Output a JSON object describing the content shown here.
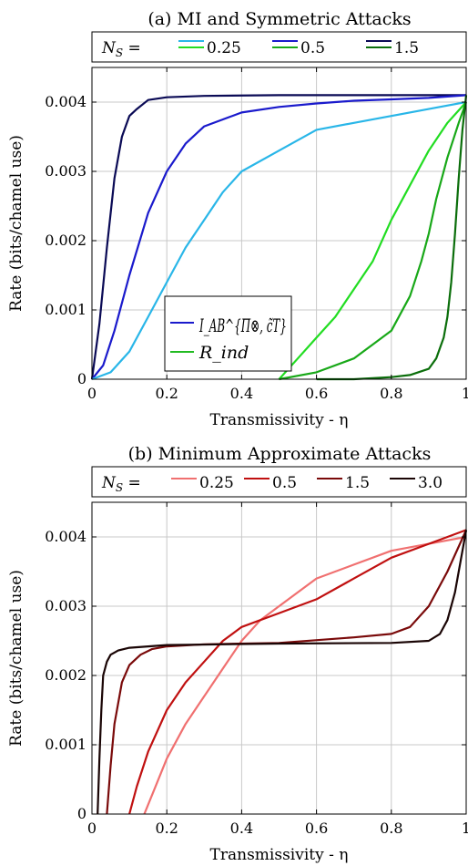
{
  "chart_data": [
    {
      "type": "line",
      "title": "(a) MI and Symmetric Attacks",
      "xlabel": "Transmissivity - η",
      "ylabel": "Rate (bits/chamel use)",
      "xlim": [
        0,
        1
      ],
      "ylim": [
        0,
        0.0045
      ],
      "xticks": [
        "0",
        "0.2",
        "0.4",
        "0.6",
        "0.8",
        "1"
      ],
      "yticks": [
        "0",
        "0.001",
        "0.002",
        "0.003",
        "0.004"
      ],
      "grid": true,
      "top_legend": {
        "prefix": "N_S =",
        "entries": [
          {
            "label": "0.25",
            "colors": [
              "#29b6e8",
              "#22dd22"
            ]
          },
          {
            "label": "0.5",
            "colors": [
              "#1a1acc",
              "#18a818"
            ]
          },
          {
            "label": "1.5",
            "colors": [
              "#0a0a55",
              "#0b6e0b"
            ]
          }
        ]
      },
      "inner_legend": {
        "placement": "center-left",
        "entries": [
          {
            "label": "I_AB^{Π⊗, c̃T}",
            "color": "#1a1acc"
          },
          {
            "label": "R_ind",
            "color": "#22bb22"
          }
        ]
      },
      "series": [
        {
          "color": "#0a0a55",
          "x": [
            0,
            0.02,
            0.04,
            0.06,
            0.08,
            0.1,
            0.12,
            0.15,
            0.2,
            0.3,
            0.5,
            0.8,
            1.0
          ],
          "y": [
            0,
            0.0008,
            0.0019,
            0.0029,
            0.0035,
            0.0038,
            0.0039,
            0.00403,
            0.00407,
            0.00409,
            0.0041,
            0.0041,
            0.0041
          ]
        },
        {
          "color": "#1a1acc",
          "x": [
            0,
            0.03,
            0.06,
            0.1,
            0.15,
            0.2,
            0.25,
            0.3,
            0.4,
            0.5,
            0.6,
            0.7,
            0.8,
            0.9,
            1.0
          ],
          "y": [
            0,
            0.0002,
            0.0007,
            0.0015,
            0.0024,
            0.003,
            0.0034,
            0.00365,
            0.00385,
            0.00393,
            0.00398,
            0.00402,
            0.00404,
            0.00406,
            0.0041
          ]
        },
        {
          "color": "#29b6e8",
          "x": [
            0,
            0.05,
            0.1,
            0.15,
            0.2,
            0.25,
            0.3,
            0.35,
            0.4,
            0.5,
            0.6,
            0.7,
            0.8,
            0.9,
            1.0
          ],
          "y": [
            0,
            0.0001,
            0.0004,
            0.0009,
            0.0014,
            0.0019,
            0.0023,
            0.0027,
            0.003,
            0.0033,
            0.0036,
            0.0037,
            0.0038,
            0.0039,
            0.004
          ]
        },
        {
          "color": "#22dd22",
          "x": [
            0.5,
            0.55,
            0.6,
            0.65,
            0.7,
            0.75,
            0.8,
            0.85,
            0.9,
            0.95,
            1.0
          ],
          "y": [
            0,
            0.0003,
            0.0006,
            0.0009,
            0.0013,
            0.0017,
            0.0023,
            0.0028,
            0.0033,
            0.0037,
            0.004
          ]
        },
        {
          "color": "#18a818",
          "x": [
            0.5,
            0.6,
            0.7,
            0.75,
            0.8,
            0.85,
            0.88,
            0.9,
            0.92,
            0.95,
            0.98,
            1.0
          ],
          "y": [
            0,
            0.0001,
            0.0003,
            0.0005,
            0.0007,
            0.0012,
            0.0017,
            0.0021,
            0.0026,
            0.0032,
            0.0037,
            0.004
          ]
        },
        {
          "color": "#0b6e0b",
          "x": [
            0.6,
            0.7,
            0.8,
            0.85,
            0.9,
            0.92,
            0.94,
            0.95,
            0.96,
            0.97,
            0.98,
            0.99,
            1.0
          ],
          "y": [
            0,
            0.0,
            3e-05,
            6e-05,
            0.00015,
            0.0003,
            0.0006,
            0.0009,
            0.0014,
            0.0021,
            0.0029,
            0.0036,
            0.0041
          ]
        }
      ]
    },
    {
      "type": "line",
      "title": "(b) Minimum Approximate Attacks",
      "xlabel": "Transmissivity - η",
      "ylabel": "Rate (bits/chamel use)",
      "xlim": [
        0,
        1
      ],
      "ylim": [
        0,
        0.0045
      ],
      "xticks": [
        "0",
        "0.2",
        "0.4",
        "0.6",
        "0.8",
        "1"
      ],
      "yticks": [
        "0",
        "0.001",
        "0.002",
        "0.003",
        "0.004"
      ],
      "grid": true,
      "top_legend": {
        "prefix": "N_S =",
        "entries": [
          {
            "label": "0.25",
            "colors": [
              "#f07070"
            ]
          },
          {
            "label": "0.5",
            "colors": [
              "#c01010"
            ]
          },
          {
            "label": "1.5",
            "colors": [
              "#7a0a0a"
            ]
          },
          {
            "label": "3.0",
            "colors": [
              "#1a0505"
            ]
          }
        ]
      },
      "series": [
        {
          "color": "#f07070",
          "x": [
            0.14,
            0.17,
            0.2,
            0.25,
            0.3,
            0.35,
            0.4,
            0.45,
            0.5,
            0.55,
            0.6,
            0.7,
            0.8,
            0.9,
            1.0
          ],
          "y": [
            0,
            0.0004,
            0.0008,
            0.0013,
            0.0017,
            0.0021,
            0.0025,
            0.0028,
            0.003,
            0.0032,
            0.0034,
            0.0036,
            0.0038,
            0.0039,
            0.004
          ]
        },
        {
          "color": "#c01010",
          "x": [
            0.1,
            0.12,
            0.15,
            0.2,
            0.25,
            0.3,
            0.35,
            0.4,
            0.5,
            0.6,
            0.7,
            0.8,
            0.9,
            1.0
          ],
          "y": [
            0,
            0.0004,
            0.0009,
            0.0015,
            0.0019,
            0.0022,
            0.0025,
            0.0027,
            0.0029,
            0.0031,
            0.0034,
            0.0037,
            0.0039,
            0.0041
          ]
        },
        {
          "color": "#7a0a0a",
          "x": [
            0.04,
            0.05,
            0.06,
            0.08,
            0.1,
            0.13,
            0.16,
            0.2,
            0.3,
            0.5,
            0.7,
            0.8,
            0.85,
            0.9,
            0.95,
            1.0
          ],
          "y": [
            0,
            0.0007,
            0.0013,
            0.0019,
            0.00215,
            0.0023,
            0.00238,
            0.00242,
            0.00245,
            0.00247,
            0.00255,
            0.0026,
            0.0027,
            0.003,
            0.0035,
            0.0041
          ]
        },
        {
          "color": "#1a0505",
          "x": [
            0.015,
            0.02,
            0.025,
            0.03,
            0.04,
            0.05,
            0.07,
            0.1,
            0.2,
            0.5,
            0.8,
            0.9,
            0.93,
            0.95,
            0.97,
            1.0
          ],
          "y": [
            0,
            0.0008,
            0.0015,
            0.002,
            0.0022,
            0.0023,
            0.00236,
            0.0024,
            0.00244,
            0.00246,
            0.00247,
            0.0025,
            0.0026,
            0.0028,
            0.0032,
            0.0041
          ]
        }
      ]
    }
  ]
}
